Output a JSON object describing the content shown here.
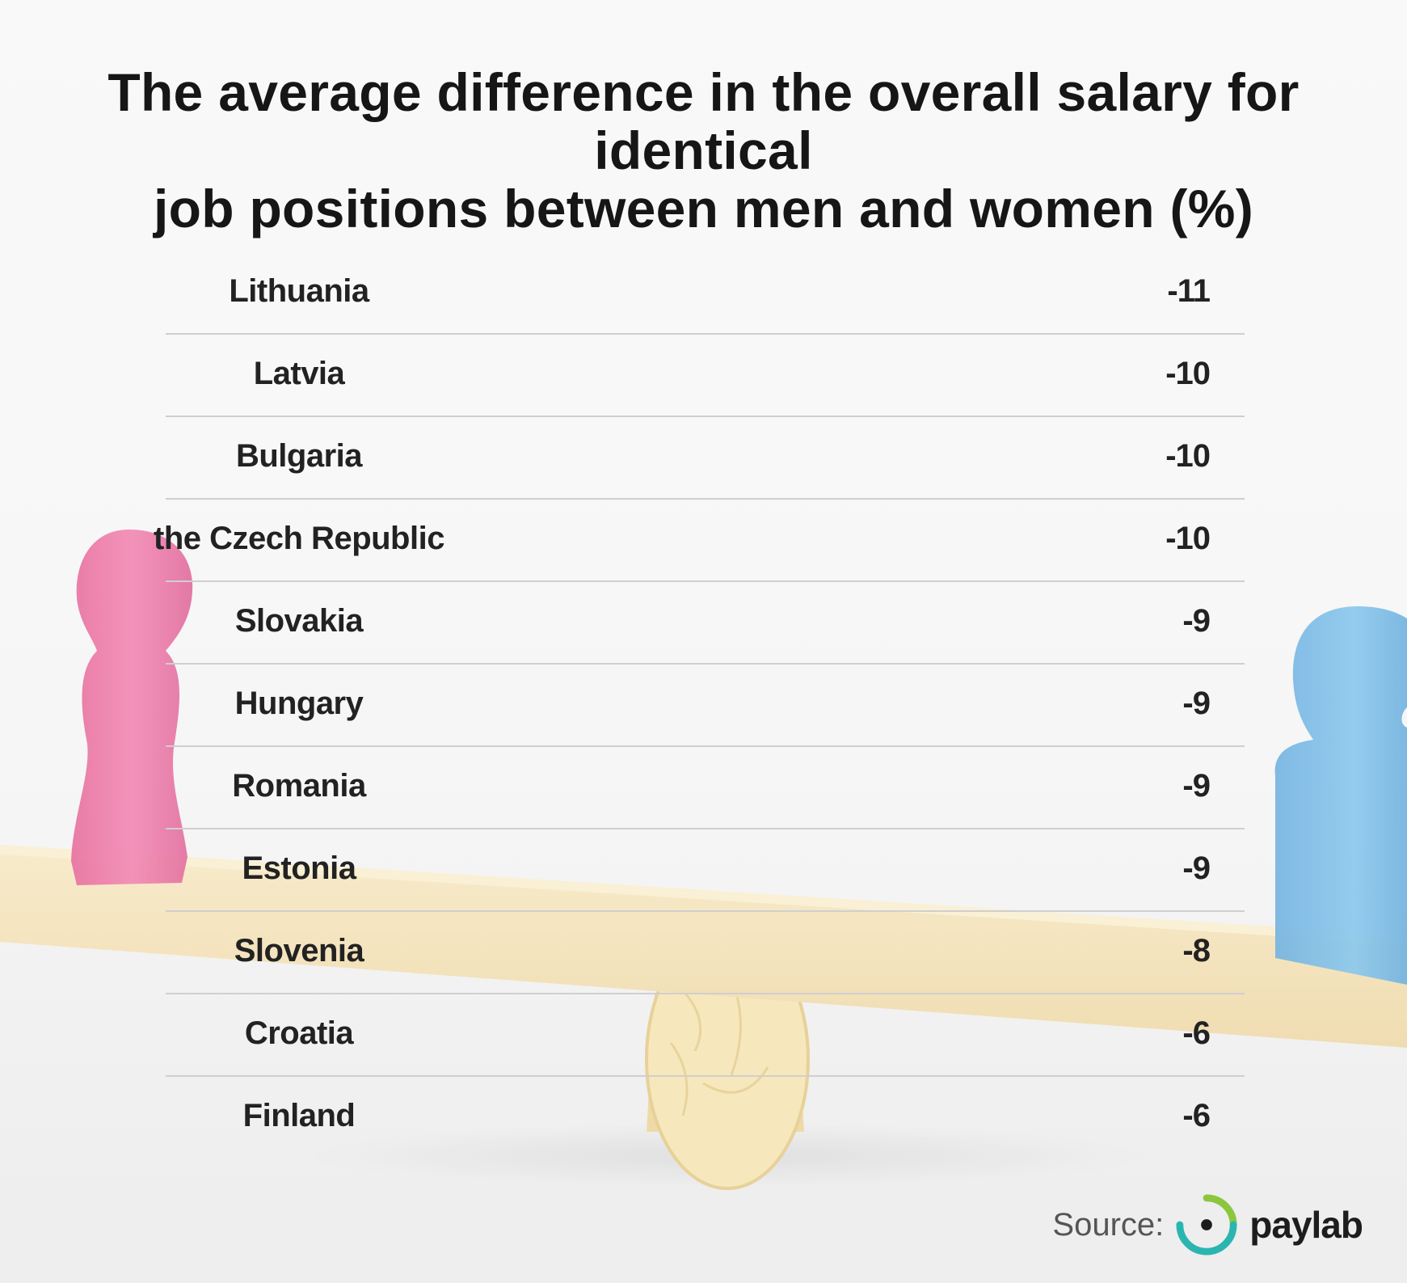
{
  "header": {
    "title_line1": "The average difference in the overall salary for identical",
    "title_line2": "job positions between men and women (%)"
  },
  "chart_data": {
    "type": "table",
    "title": "The average difference in the overall salary for identical job positions between men and women (%)",
    "columns": [
      "",
      ""
    ],
    "rows": [
      {
        "country": "Lithuania",
        "value": -11
      },
      {
        "country": "Latvia",
        "value": -10
      },
      {
        "country": "Bulgaria",
        "value": -10
      },
      {
        "country": "the Czech Republic",
        "value": -10
      },
      {
        "country": "Slovakia",
        "value": -9
      },
      {
        "country": "Hungary",
        "value": -9
      },
      {
        "country": "Romania",
        "value": -9
      },
      {
        "country": "Estonia",
        "value": -9
      },
      {
        "country": "Slovenia",
        "value": -8
      },
      {
        "country": "Croatia",
        "value": -6
      },
      {
        "country": "Finland",
        "value": -6
      }
    ]
  },
  "footer": {
    "source_label": "Source:",
    "brand": "paylab"
  },
  "colors": {
    "pink_figure": "#ec5c93",
    "blue_figure": "#5aaee0",
    "board": "#f3dfb0",
    "divider": "#cfcfcf",
    "logo_green": "#8cc63f",
    "logo_teal": "#2bb5b0"
  }
}
